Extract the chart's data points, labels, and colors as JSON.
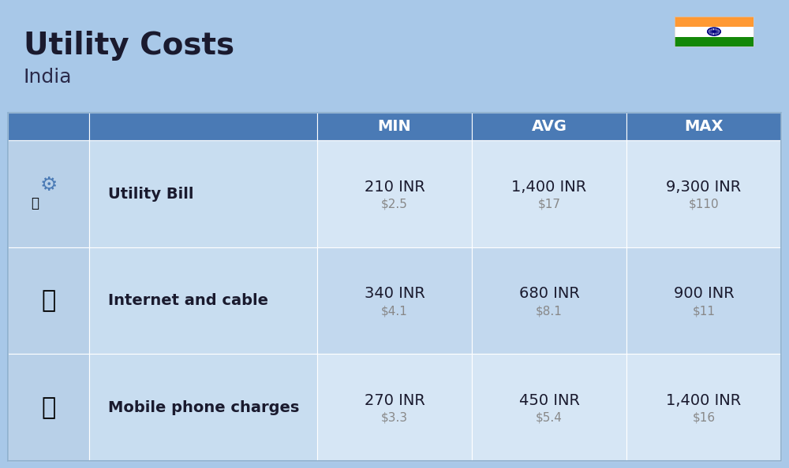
{
  "title": "Utility Costs",
  "subtitle": "India",
  "background_color": "#a8c8e8",
  "header_bg_color": "#4a7ab5",
  "header_text_color": "#ffffff",
  "row_colors": [
    "#d6e6f5",
    "#c2d8ee"
  ],
  "icon_col_color": "#b8d0e8",
  "label_col_color": "#c8ddf0",
  "columns": [
    "MIN",
    "AVG",
    "MAX"
  ],
  "rows": [
    {
      "label": "Utility Bill",
      "icon": "utility",
      "min_inr": "210 INR",
      "min_usd": "$2.5",
      "avg_inr": "1,400 INR",
      "avg_usd": "$17",
      "max_inr": "9,300 INR",
      "max_usd": "$110"
    },
    {
      "label": "Internet and cable",
      "icon": "internet",
      "min_inr": "340 INR",
      "min_usd": "$4.1",
      "avg_inr": "680 INR",
      "avg_usd": "$8.1",
      "max_inr": "900 INR",
      "max_usd": "$11"
    },
    {
      "label": "Mobile phone charges",
      "icon": "mobile",
      "min_inr": "270 INR",
      "min_usd": "$3.3",
      "avg_inr": "450 INR",
      "avg_usd": "$5.4",
      "max_inr": "1,400 INR",
      "max_usd": "$16"
    }
  ],
  "flag_colors": [
    "#FF9933",
    "#ffffff",
    "#138808"
  ],
  "flag_emblem_color": "#000080",
  "title_fontsize": 28,
  "subtitle_fontsize": 18,
  "header_fontsize": 14,
  "label_fontsize": 14,
  "value_fontsize": 14,
  "usd_fontsize": 11
}
